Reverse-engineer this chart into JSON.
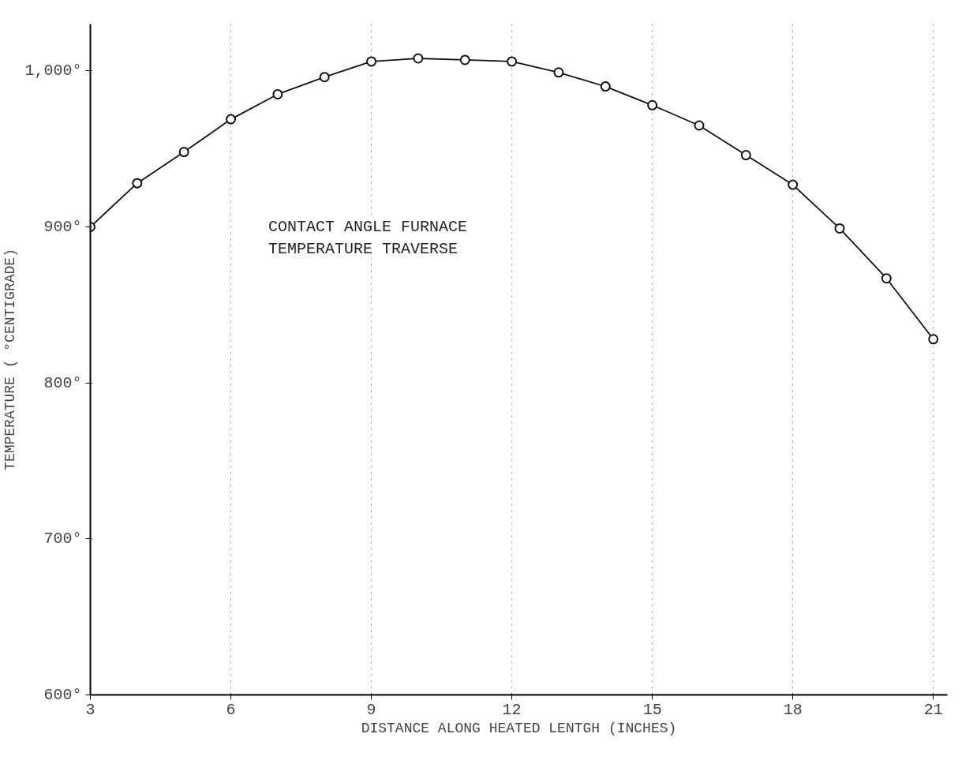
{
  "chart_data": {
    "type": "line",
    "title": "CONTACT ANGLE FURNACE\nTEMPERATURE TRAVERSE",
    "xlabel": "DISTANCE ALONG HEATED LENTGH (INCHES)",
    "ylabel": "TEMPERATURE ( °CENTIGRADE)",
    "x": [
      3,
      4,
      5,
      6,
      7,
      8,
      9,
      10,
      11,
      12,
      13,
      14,
      15,
      16,
      17,
      18,
      19,
      20,
      21
    ],
    "series": [
      {
        "color": "#111111",
        "values": [
          900,
          928,
          948,
          969,
          985,
          996,
          1006,
          1008,
          1007,
          1006,
          999,
          990,
          978,
          965,
          946,
          927,
          899,
          867,
          828
        ]
      }
    ],
    "marker": "circle",
    "line_style": "solid",
    "grid": "x",
    "xlim": [
      3,
      21.3
    ],
    "ylim": [
      600,
      1030
    ],
    "xticks": [
      3,
      6,
      9,
      12,
      15,
      18,
      21
    ],
    "yticks": [
      {
        "value": 600,
        "label": "600°"
      },
      {
        "value": 700,
        "label": "700°"
      },
      {
        "value": 800,
        "label": "800°"
      },
      {
        "value": 900,
        "label": "900°"
      },
      {
        "value": 1000,
        "label": "1,000°"
      }
    ]
  }
}
